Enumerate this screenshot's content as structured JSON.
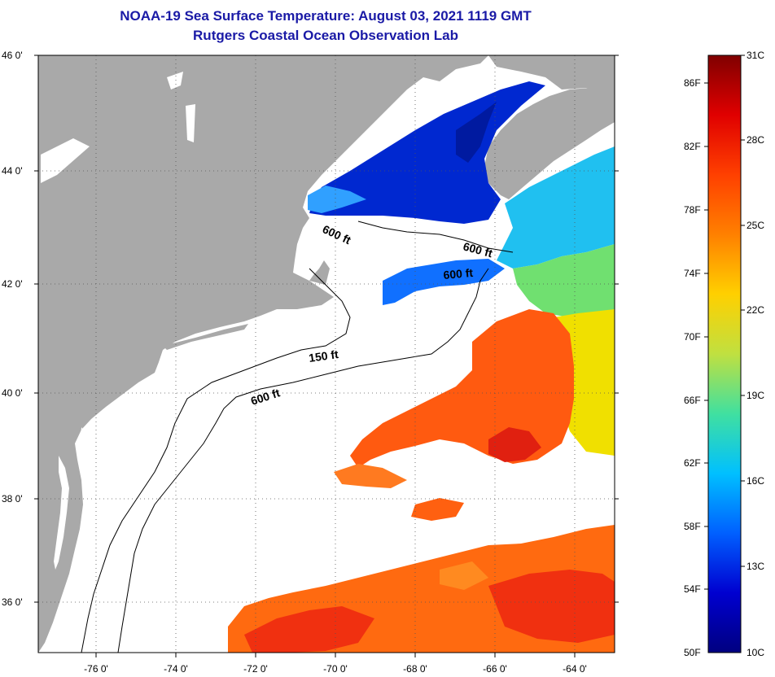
{
  "title": {
    "line1": "NOAA-19 Sea Surface Temperature:  August 03, 2021 1119 GMT",
    "line2": "Rutgers Coastal Ocean Observation Lab"
  },
  "map": {
    "lat_labels": [
      "46 0'",
      "44 0'",
      "42 0'",
      "40 0'",
      "38 0'",
      "36 0'"
    ],
    "lon_labels": [
      "-76 0'",
      "-74 0'",
      "-72 0'",
      "-70 0'",
      "-68 0'",
      "-66 0'",
      "-64 0'"
    ],
    "contour_labels": [
      "600 ft",
      "600 ft",
      "600 ft",
      "150 ft",
      "600 ft"
    ],
    "colors": {
      "land": "#a9a9a9",
      "ocean": "#ffffff",
      "contour": "#000000"
    }
  },
  "colorbar": {
    "celsius_labels": [
      "31C",
      "28C",
      "25C",
      "22C",
      "19C",
      "16C",
      "13C",
      "10C"
    ],
    "fahrenheit_labels": [
      "86F",
      "82F",
      "78F",
      "74F",
      "70F",
      "66F",
      "62F",
      "58F",
      "54F",
      "50F"
    ],
    "gradient_colors": [
      "#800000",
      "#e00000",
      "#ff4000",
      "#ff8000",
      "#ffd000",
      "#c0e040",
      "#40e0a0",
      "#00c0ff",
      "#0060ff",
      "#0000d0",
      "#000080"
    ]
  }
}
